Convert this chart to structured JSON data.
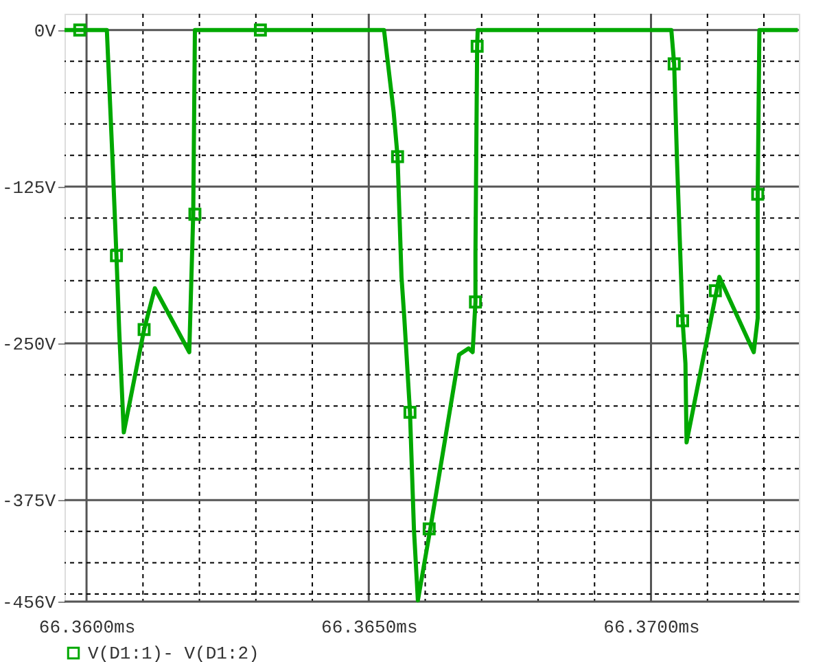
{
  "chart_data": {
    "type": "line",
    "legend": "bottom",
    "grid": true,
    "xlim": [
      66.35961,
      66.37262
    ],
    "ylim": [
      -456,
      13
    ],
    "xticks": [
      {
        "value": 66.36,
        "label": "66.3600ms"
      },
      {
        "value": 66.361,
        "label": null
      },
      {
        "value": 66.362,
        "label": null
      },
      {
        "value": 66.363,
        "label": null
      },
      {
        "value": 66.364,
        "label": null
      },
      {
        "value": 66.365,
        "label": "66.3650ms"
      },
      {
        "value": 66.366,
        "label": null
      },
      {
        "value": 66.367,
        "label": null
      },
      {
        "value": 66.368,
        "label": null
      },
      {
        "value": 66.369,
        "label": null
      },
      {
        "value": 66.37,
        "label": "66.3700ms"
      },
      {
        "value": 66.371,
        "label": null
      },
      {
        "value": 66.372,
        "label": null
      }
    ],
    "yticks": [
      {
        "value": 0,
        "label": "0V"
      },
      {
        "value": -25,
        "label": null
      },
      {
        "value": -50,
        "label": null
      },
      {
        "value": -75,
        "label": null
      },
      {
        "value": -100,
        "label": null
      },
      {
        "value": -125,
        "label": "-125V"
      },
      {
        "value": -150,
        "label": null
      },
      {
        "value": -175,
        "label": null
      },
      {
        "value": -200,
        "label": null
      },
      {
        "value": -225,
        "label": null
      },
      {
        "value": -250,
        "label": "-250V"
      },
      {
        "value": -275,
        "label": null
      },
      {
        "value": -300,
        "label": null
      },
      {
        "value": -325,
        "label": null
      },
      {
        "value": -350,
        "label": null
      },
      {
        "value": -375,
        "label": "-375V"
      },
      {
        "value": -400,
        "label": null
      },
      {
        "value": -425,
        "label": null
      },
      {
        "value": -450,
        "label": null
      },
      {
        "value": -456,
        "label": "-456V"
      }
    ],
    "series": [
      {
        "name": "V(D1:1)- V(D1:2)",
        "marker": "none",
        "color": "#00a800",
        "x": [
          66.35961,
          66.36036,
          66.36046,
          66.36053,
          66.36058,
          66.36066,
          66.36102,
          66.36121,
          66.36182,
          66.36189,
          66.36192,
          66.36527,
          66.36544,
          66.36551,
          66.36558,
          66.36563,
          66.36573,
          66.3658,
          66.36587,
          66.36609,
          66.3666,
          66.36677,
          66.36684,
          66.36689,
          66.36689,
          66.36692,
          66.36693,
          66.37036,
          66.37041,
          66.37046,
          66.37056,
          66.37061,
          66.37063,
          66.37121,
          66.37182,
          66.37189,
          66.37189,
          66.37192,
          66.3726
        ],
        "values": [
          0,
          0,
          -103,
          -180,
          -241,
          -321,
          -239,
          -206,
          -257,
          -147,
          0,
          0,
          -65,
          -101,
          -197,
          -230,
          -305,
          -398,
          -455,
          -398,
          -259,
          -254,
          -257,
          -217,
          -178,
          -13,
          0,
          0,
          -27,
          -103,
          -232,
          -266,
          -329,
          -197,
          -257,
          -230,
          -131,
          0,
          0
        ]
      },
      {
        "type": "scatter",
        "marker": "square",
        "color": "#00a800",
        "x": [
          66.35988,
          66.36053,
          66.36102,
          66.36192,
          66.36308,
          66.36551,
          66.36573,
          66.36607,
          66.36689,
          66.36692,
          66.37041,
          66.37056,
          66.37114,
          66.37189
        ],
        "values": [
          0,
          -180,
          -239,
          -147,
          0,
          -101,
          -305,
          -398,
          -217,
          -13,
          -27,
          -232,
          -208,
          -131
        ]
      }
    ]
  }
}
